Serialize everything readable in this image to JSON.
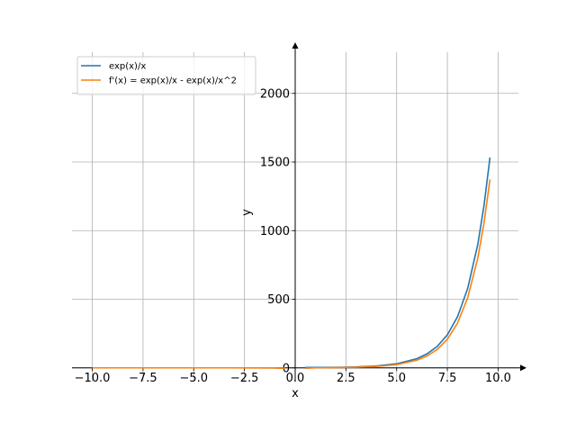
{
  "chart_data": {
    "type": "line",
    "xlabel": "x",
    "ylabel": "y",
    "xlim": [
      -11,
      11
    ],
    "ylim": [
      -100,
      2300
    ],
    "grid": true,
    "legend_position": "top-left",
    "x_ticks": [
      -10.0,
      -7.5,
      -5.0,
      -2.5,
      0.0,
      2.5,
      5.0,
      7.5,
      10.0
    ],
    "x_tick_labels": [
      "−10.0",
      "−7.5",
      "−5.0",
      "−2.5",
      "0.0",
      "2.5",
      "5.0",
      "7.5",
      "10.0"
    ],
    "y_ticks": [
      0,
      500,
      1000,
      1500,
      2000
    ],
    "y_tick_labels": [
      "0",
      "500",
      "1000",
      "1500",
      "2000"
    ],
    "series": [
      {
        "name": "exp(x)/x",
        "color": "#1f77b4",
        "x": [
          -10,
          -8,
          -6,
          -4,
          -2,
          -1,
          -0.5,
          0.5,
          1,
          2,
          3,
          4,
          5,
          6,
          6.5,
          7,
          7.5,
          8,
          8.5,
          9,
          9.3,
          9.6
        ],
        "y": [
          0,
          0,
          0,
          -0.005,
          -0.068,
          -0.37,
          -1.21,
          3.3,
          2.72,
          3.69,
          6.7,
          13.6,
          29.7,
          67.2,
          102.3,
          156.7,
          241.0,
          372.6,
          578.3,
          900.3,
          1177.6,
          1533.0
        ]
      },
      {
        "name": "f'(x) = exp(x)/x - exp(x)/x^2",
        "color": "#ff7f0e",
        "x": [
          -10,
          -8,
          -6,
          -4,
          -2,
          -1,
          -0.5,
          0.5,
          1,
          2,
          3,
          4,
          5,
          6,
          6.5,
          7,
          7.5,
          8,
          8.5,
          9,
          9.3,
          9.6
        ],
        "y": [
          0,
          0,
          0,
          -0.006,
          -0.1,
          -0.74,
          -3.6,
          -3.3,
          0,
          1.85,
          4.46,
          10.2,
          23.7,
          56.0,
          86.6,
          134.3,
          208.9,
          326.0,
          510.3,
          800.3,
          1051.0,
          1373.0
        ]
      }
    ]
  }
}
